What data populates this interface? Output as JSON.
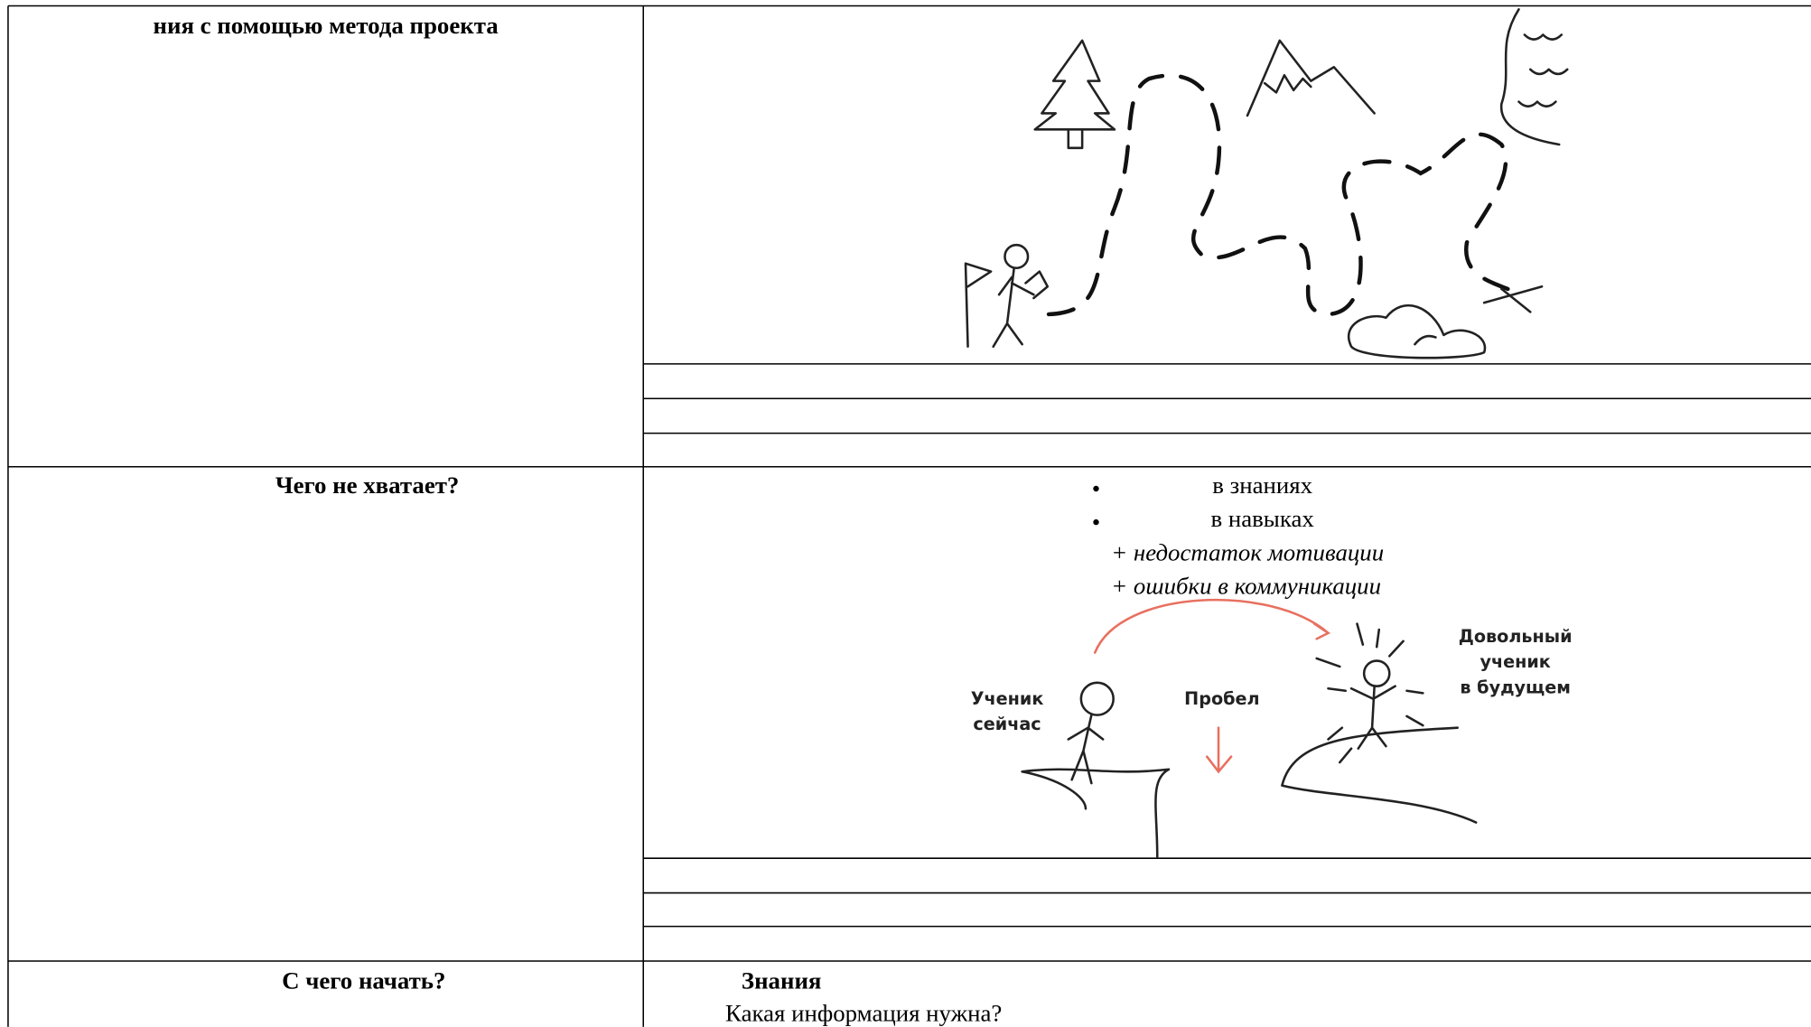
{
  "table": {
    "rows": [
      {
        "label": "ния с помощью метода проекта"
      },
      {
        "label": "Чего не хватает?",
        "bullets": [
          "в знаниях",
          "в навыках"
        ],
        "notes": [
          "+ недостаток мотивации",
          "+ ошибки в коммуникации"
        ],
        "figure": {
          "student_now": [
            "Ученик",
            "сейчас"
          ],
          "gap": "Пробел",
          "student_future": [
            "Довольный",
            "ученик",
            "в будущем"
          ]
        }
      },
      {
        "label": "С чего начать?",
        "heading": "Знания",
        "question": "Какая информация нужна?"
      }
    ]
  }
}
